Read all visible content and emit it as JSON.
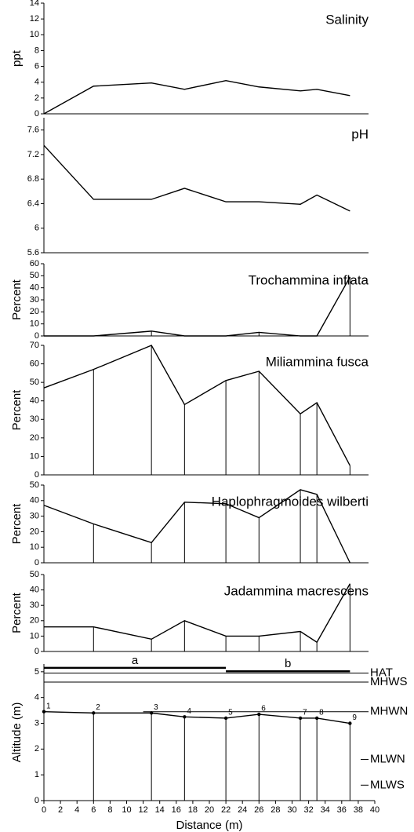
{
  "chart_data": [
    {
      "type": "line",
      "title": "Salinity",
      "ylabel": "ppt",
      "x": [
        0,
        6,
        13,
        17,
        22,
        26,
        31,
        33,
        37
      ],
      "values": [
        0,
        3.5,
        3.9,
        3.1,
        4.2,
        3.4,
        2.9,
        3.1,
        2.3
      ],
      "xlim": [
        0,
        40
      ],
      "ylim": [
        0,
        14
      ],
      "yticks": [
        0,
        2,
        4,
        6,
        8,
        10,
        12,
        14
      ],
      "drop_lines": false,
      "color": "#000000"
    },
    {
      "type": "line",
      "title": "pH",
      "x": [
        0,
        6,
        13,
        17,
        22,
        26,
        31,
        33,
        37
      ],
      "values": [
        7.35,
        6.47,
        6.47,
        6.65,
        6.43,
        6.43,
        6.39,
        6.54,
        6.28
      ],
      "xlim": [
        0,
        40
      ],
      "ylim": [
        5.6,
        7.8
      ],
      "yticks": [
        5.6,
        6,
        6.4,
        6.8,
        7.2,
        7.6
      ],
      "drop_lines": false,
      "color": "#000000"
    },
    {
      "type": "line",
      "title": "Trochammina inflata",
      "ylabel": "Percent",
      "x": [
        0,
        6,
        13,
        17,
        22,
        26,
        31,
        33,
        37
      ],
      "values": [
        0,
        0,
        4,
        0,
        0,
        3,
        0,
        0,
        49
      ],
      "xlim": [
        0,
        40
      ],
      "ylim": [
        0,
        60
      ],
      "yticks": [
        0,
        10,
        20,
        30,
        40,
        50,
        60
      ],
      "drop_lines": true,
      "color": "#000000"
    },
    {
      "type": "line",
      "title": "Miliammina fusca",
      "ylabel": "Percent",
      "x": [
        0,
        6,
        13,
        17,
        22,
        26,
        31,
        33,
        37
      ],
      "values": [
        47,
        57,
        70,
        38,
        51,
        56,
        33,
        39,
        5
      ],
      "xlim": [
        0,
        40
      ],
      "ylim": [
        0,
        70
      ],
      "yticks": [
        0,
        10,
        20,
        30,
        40,
        50,
        60,
        70
      ],
      "drop_lines": true,
      "color": "#000000"
    },
    {
      "type": "line",
      "title": "Haplophragmoides wilberti",
      "ylabel": "Percent",
      "x": [
        0,
        6,
        13,
        17,
        22,
        26,
        31,
        33,
        37
      ],
      "values": [
        37,
        25,
        13,
        39,
        38,
        29,
        47,
        44,
        0
      ],
      "xlim": [
        0,
        40
      ],
      "ylim": [
        0,
        50
      ],
      "yticks": [
        0,
        10,
        20,
        30,
        40,
        50
      ],
      "drop_lines": true,
      "color": "#000000"
    },
    {
      "type": "line",
      "title": "Jadammina macrescens",
      "ylabel": "Percent",
      "x": [
        0,
        6,
        13,
        17,
        22,
        26,
        31,
        33,
        37
      ],
      "values": [
        16,
        16,
        8,
        20,
        10,
        10,
        13,
        6,
        44
      ],
      "xlim": [
        0,
        40
      ],
      "ylim": [
        0,
        50
      ],
      "yticks": [
        0,
        10,
        20,
        30,
        40,
        50
      ],
      "drop_lines": true,
      "color": "#000000"
    },
    {
      "type": "line",
      "ylabel": "Altitude (m)",
      "xlabel": "Distance (m)",
      "x": [
        0,
        6,
        13,
        17,
        22,
        26,
        31,
        33,
        37
      ],
      "values": [
        3.45,
        3.4,
        3.4,
        3.25,
        3.2,
        3.35,
        3.2,
        3.2,
        3.0
      ],
      "point_labels": [
        "1",
        "2",
        "3",
        "4",
        "5",
        "6",
        "7",
        "8",
        "9"
      ],
      "xlim": [
        0,
        40
      ],
      "ylim": [
        0,
        5.3
      ],
      "yticks": [
        0,
        1,
        2,
        3,
        4,
        5
      ],
      "xticks": [
        0,
        2,
        4,
        6,
        8,
        10,
        12,
        14,
        16,
        18,
        20,
        22,
        24,
        26,
        28,
        30,
        32,
        34,
        36,
        38,
        40
      ],
      "drop_lines": true,
      "color": "#000000",
      "levels": [
        {
          "label": "HAT",
          "value": 4.95
        },
        {
          "label": "MHWS",
          "value": 4.6
        },
        {
          "label": "MHWN",
          "value": 3.45
        },
        {
          "label": "MLWN",
          "value": 1.6
        },
        {
          "label": "MLWS",
          "value": 0.6
        }
      ],
      "groups": [
        {
          "label": "a",
          "x": [
            0,
            22
          ],
          "y": 5.15
        },
        {
          "label": "b",
          "x": [
            22,
            37
          ],
          "y": 5.02
        }
      ]
    }
  ]
}
